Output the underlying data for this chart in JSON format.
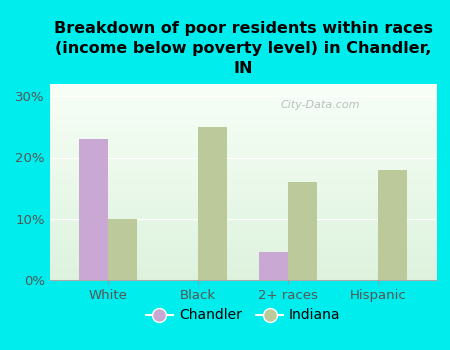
{
  "title": "Breakdown of poor residents within races\n(income below poverty level) in Chandler,\nIN",
  "categories": [
    "White",
    "Black",
    "2+ races",
    "Hispanic"
  ],
  "chandler_values": [
    23.0,
    0.0,
    4.5,
    0.0
  ],
  "indiana_values": [
    10.0,
    25.0,
    16.0,
    18.0
  ],
  "chandler_color": "#c9a8d4",
  "indiana_color": "#bcc99a",
  "background_color": "#00eded",
  "ylim": [
    0,
    32
  ],
  "yticks": [
    0,
    10,
    20,
    30
  ],
  "bar_width": 0.32,
  "title_fontsize": 11.5,
  "tick_fontsize": 9.5,
  "legend_fontsize": 10,
  "watermark": "City-Data.com"
}
